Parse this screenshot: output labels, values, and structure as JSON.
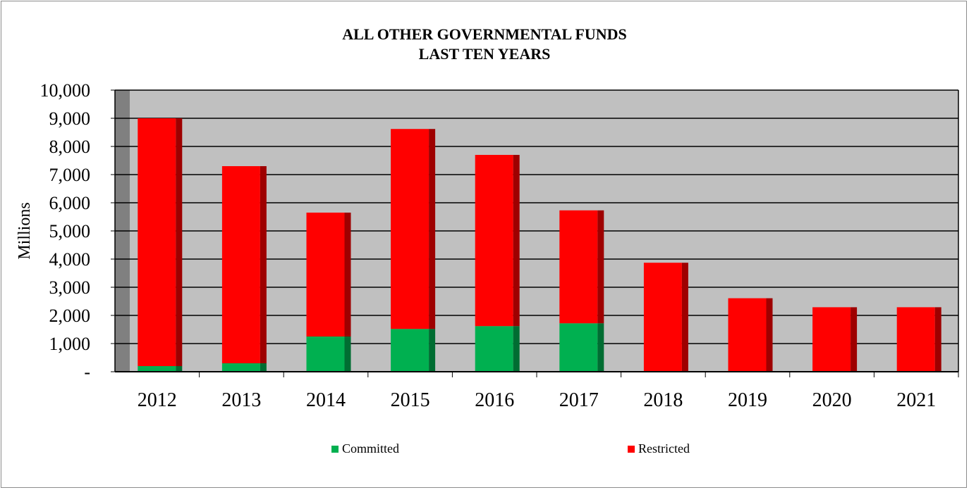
{
  "chart_data": {
    "type": "bar",
    "stacked": true,
    "title": "ALL OTHER GOVERNMENTAL FUNDS",
    "subtitle": "LAST TEN YEARS",
    "ylabel": "Millions",
    "xlabel": "",
    "ylim": [
      0,
      10000
    ],
    "yticks": [
      0,
      1000,
      2000,
      3000,
      4000,
      5000,
      6000,
      7000,
      8000,
      9000,
      10000
    ],
    "ytick_labels": [
      "-",
      "1,000",
      "2,000",
      "3,000",
      "4,000",
      "5,000",
      "6,000",
      "7,000",
      "8,000",
      "9,000",
      "10,000"
    ],
    "categories": [
      "2012",
      "2013",
      "2014",
      "2015",
      "2016",
      "2017",
      "2018",
      "2019",
      "2020",
      "2021"
    ],
    "series": [
      {
        "name": "Committed",
        "color": "#00b050",
        "values": [
          200,
          300,
          1250,
          1520,
          1620,
          1720,
          0,
          0,
          0,
          0
        ]
      },
      {
        "name": "Restricted",
        "color": "#ff0000",
        "values": [
          8800,
          7000,
          4400,
          7100,
          6080,
          4010,
          3870,
          2610,
          2290,
          2290
        ]
      }
    ],
    "grid": true,
    "plot_background": "#c0c0c0",
    "legend_position": "bottom"
  }
}
